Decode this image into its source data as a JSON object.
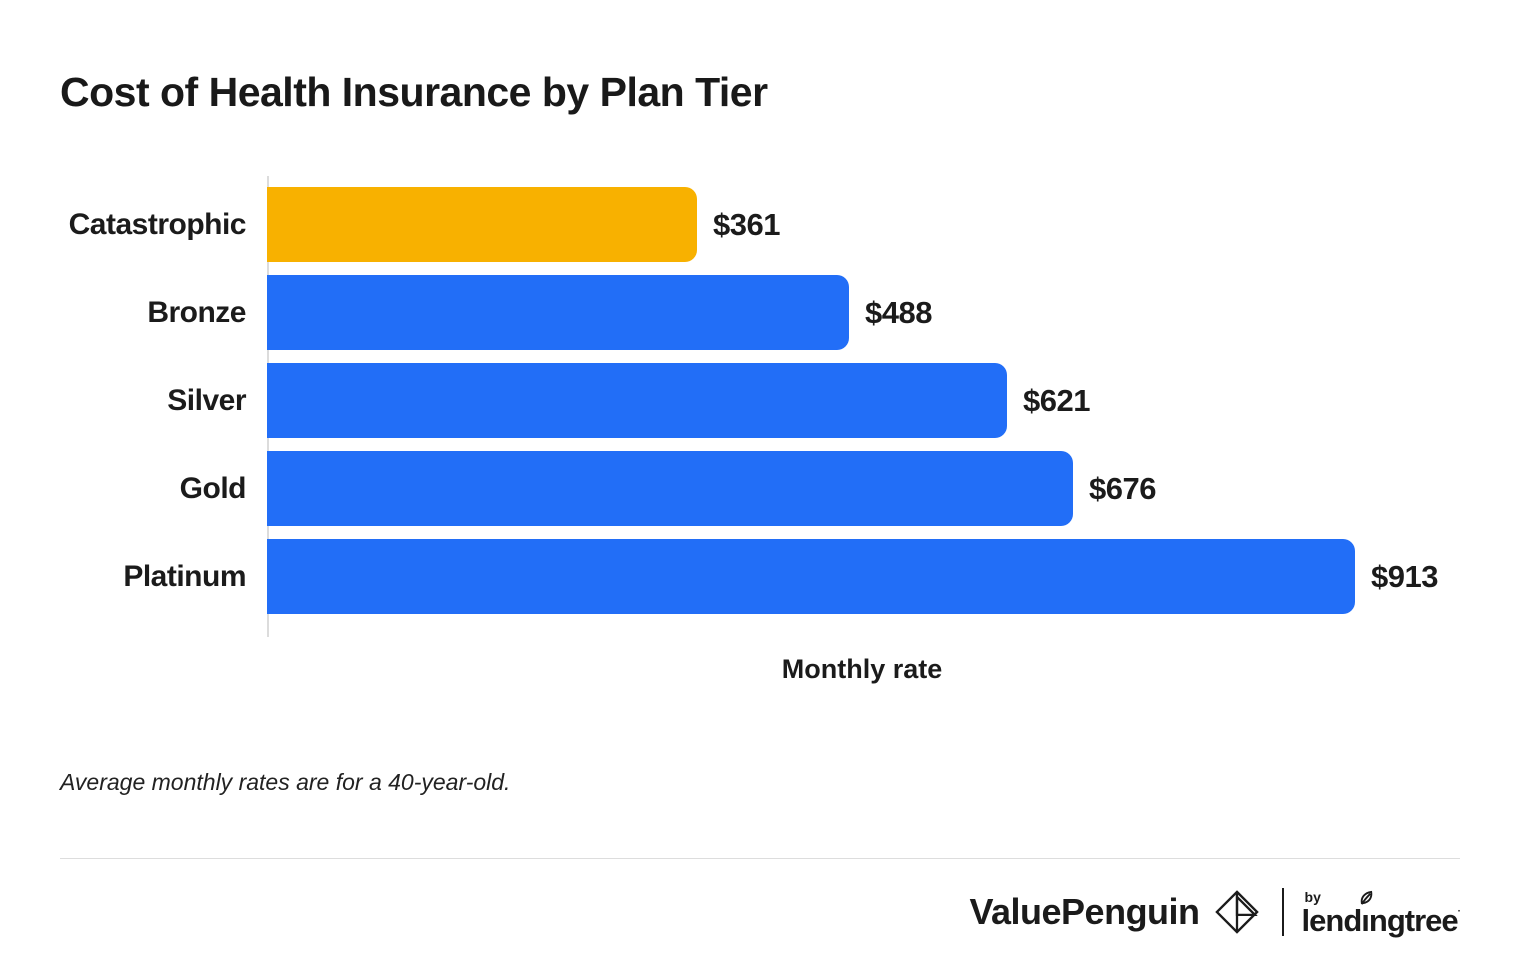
{
  "chart_data": {
    "type": "bar",
    "orientation": "horizontal",
    "title": "Cost of Health Insurance by Plan Tier",
    "categories": [
      "Catastrophic",
      "Bronze",
      "Silver",
      "Gold",
      "Platinum"
    ],
    "values": [
      361,
      488,
      621,
      676,
      913
    ],
    "value_labels": [
      "$361",
      "$488",
      "$621",
      "$676",
      "$913"
    ],
    "bar_colors": [
      "#f8b100",
      "#226ef7",
      "#226ef7",
      "#226ef7",
      "#226ef7"
    ],
    "xlabel": "Monthly rate",
    "ylabel": "",
    "xlim": [
      0,
      913
    ],
    "grid": false,
    "legend": "none"
  },
  "colors": {
    "accent_orange": "#f8b100",
    "accent_blue": "#226ef7",
    "text": "#1b1b1b",
    "axis_line": "#dcdcdc",
    "divider": "#dddddd"
  },
  "footnote": "Average monthly rates are for a 40-year-old.",
  "footer": {
    "brand": "ValuePenguin",
    "by_label": "by",
    "partner_prefix": "lend",
    "partner_i": "ı",
    "partner_suffix": "ngtree",
    "partner_full": "lendingtree"
  }
}
